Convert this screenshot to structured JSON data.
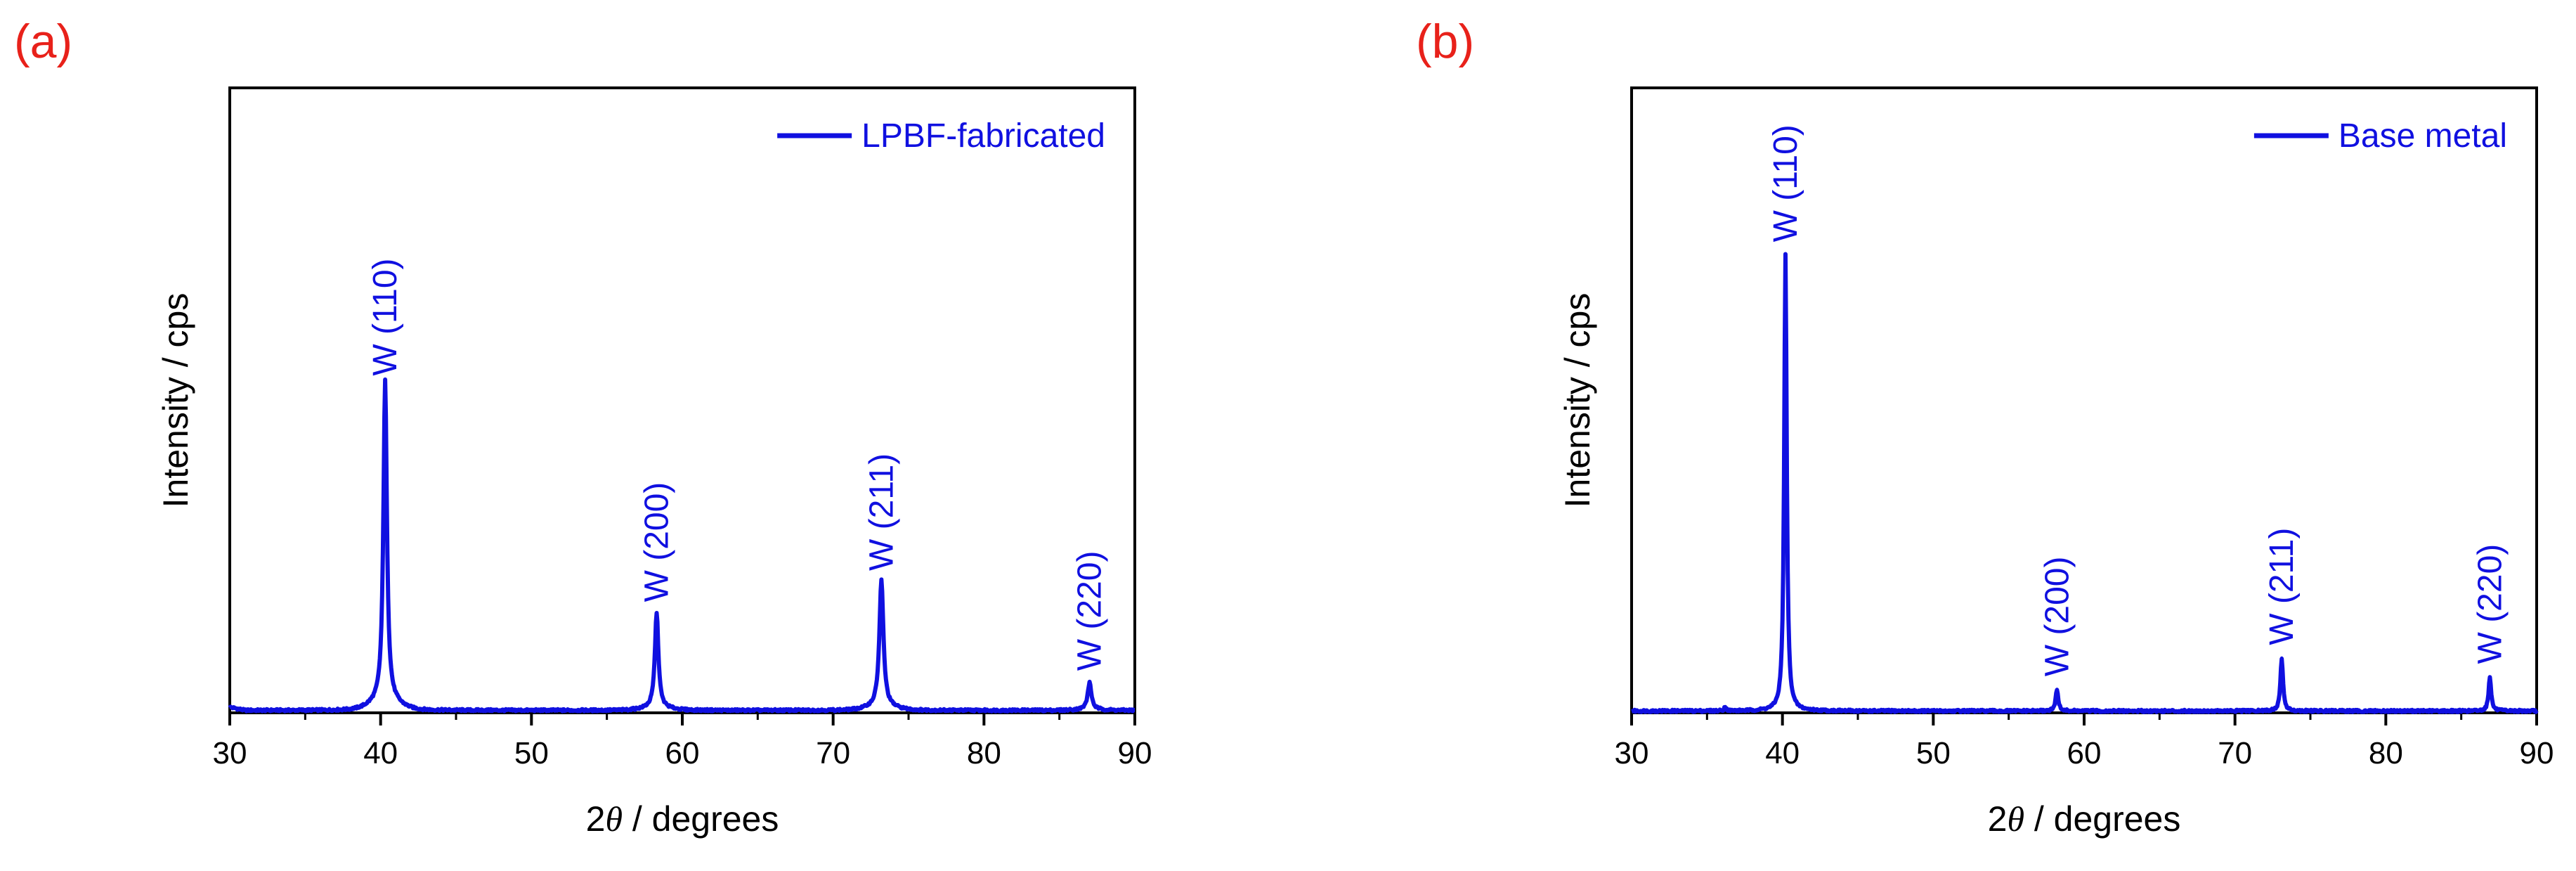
{
  "colors": {
    "series": "#1010e0",
    "panel_label": "#e8211a",
    "axis": "#000000"
  },
  "chart_data": [
    {
      "type": "line",
      "panel_label": "(a)",
      "xlabel_prefix": "2",
      "xlabel_symbol": "θ",
      "xlabel_suffix": " / degrees",
      "ylabel": "Intensity / cps",
      "xlim": [
        30,
        90
      ],
      "ylim": [
        0,
        100
      ],
      "xticks": [
        30,
        40,
        50,
        60,
        70,
        80,
        90
      ],
      "xtick_labels": [
        "30",
        "40",
        "50",
        "60",
        "70",
        "80",
        "90"
      ],
      "legend": "LPBF-fabricated",
      "baseline": 0.4,
      "peaks": [
        {
          "position": 40.3,
          "height": 51.5,
          "width": 0.28,
          "label": "W (110)"
        },
        {
          "position": 58.3,
          "height": 15.3,
          "width": 0.28,
          "label": "W (200)"
        },
        {
          "position": 73.2,
          "height": 20.3,
          "width": 0.32,
          "label": "W (211)"
        },
        {
          "position": 87.0,
          "height": 4.3,
          "width": 0.3,
          "label": "W (220)"
        }
      ]
    },
    {
      "type": "line",
      "panel_label": "(b)",
      "xlabel_prefix": "2",
      "xlabel_symbol": "θ",
      "xlabel_suffix": " / degrees",
      "ylabel": "Intensity / cps",
      "xlim": [
        30,
        90
      ],
      "ylim": [
        0,
        100
      ],
      "xticks": [
        30,
        40,
        50,
        60,
        70,
        80,
        90
      ],
      "xtick_labels": [
        "30",
        "40",
        "50",
        "60",
        "70",
        "80",
        "90"
      ],
      "legend": "Base metal",
      "baseline": 0.3,
      "peaks": [
        {
          "position": 36.2,
          "height": 0.7,
          "width": 0.15,
          "label": ""
        },
        {
          "position": 40.2,
          "height": 73.0,
          "width": 0.2,
          "label": "W (110)"
        },
        {
          "position": 58.2,
          "height": 3.5,
          "width": 0.2,
          "label": "W (200)"
        },
        {
          "position": 73.1,
          "height": 8.5,
          "width": 0.2,
          "label": "W (211)"
        },
        {
          "position": 86.9,
          "height": 5.5,
          "width": 0.2,
          "label": "W (220)"
        }
      ]
    }
  ]
}
